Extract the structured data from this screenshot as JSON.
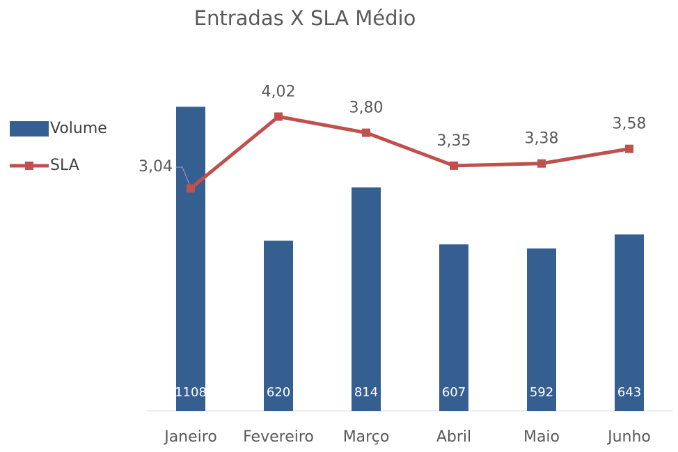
{
  "chart_data": {
    "type": "bar_line",
    "title": "Entradas X SLA Médio",
    "categories": [
      "Janeiro",
      "Fevereiro",
      "Março",
      "Abril",
      "Maio",
      "Junho"
    ],
    "series": [
      {
        "name": "Volume",
        "type": "bar",
        "color": "#365f91",
        "values": [
          1108,
          620,
          814,
          607,
          592,
          643
        ]
      },
      {
        "name": "SLA",
        "type": "line",
        "axis": "y2",
        "color": "#c0504d",
        "values": [
          3.04,
          4.02,
          3.8,
          3.35,
          3.38,
          3.58
        ],
        "value_labels": [
          "3,04",
          "4,02",
          "3,80",
          "3,35",
          "3,38",
          "3,58"
        ]
      }
    ],
    "ylim": [
      0,
      1200
    ],
    "y2lim": [
      0,
      4.5
    ],
    "legend": "left"
  }
}
